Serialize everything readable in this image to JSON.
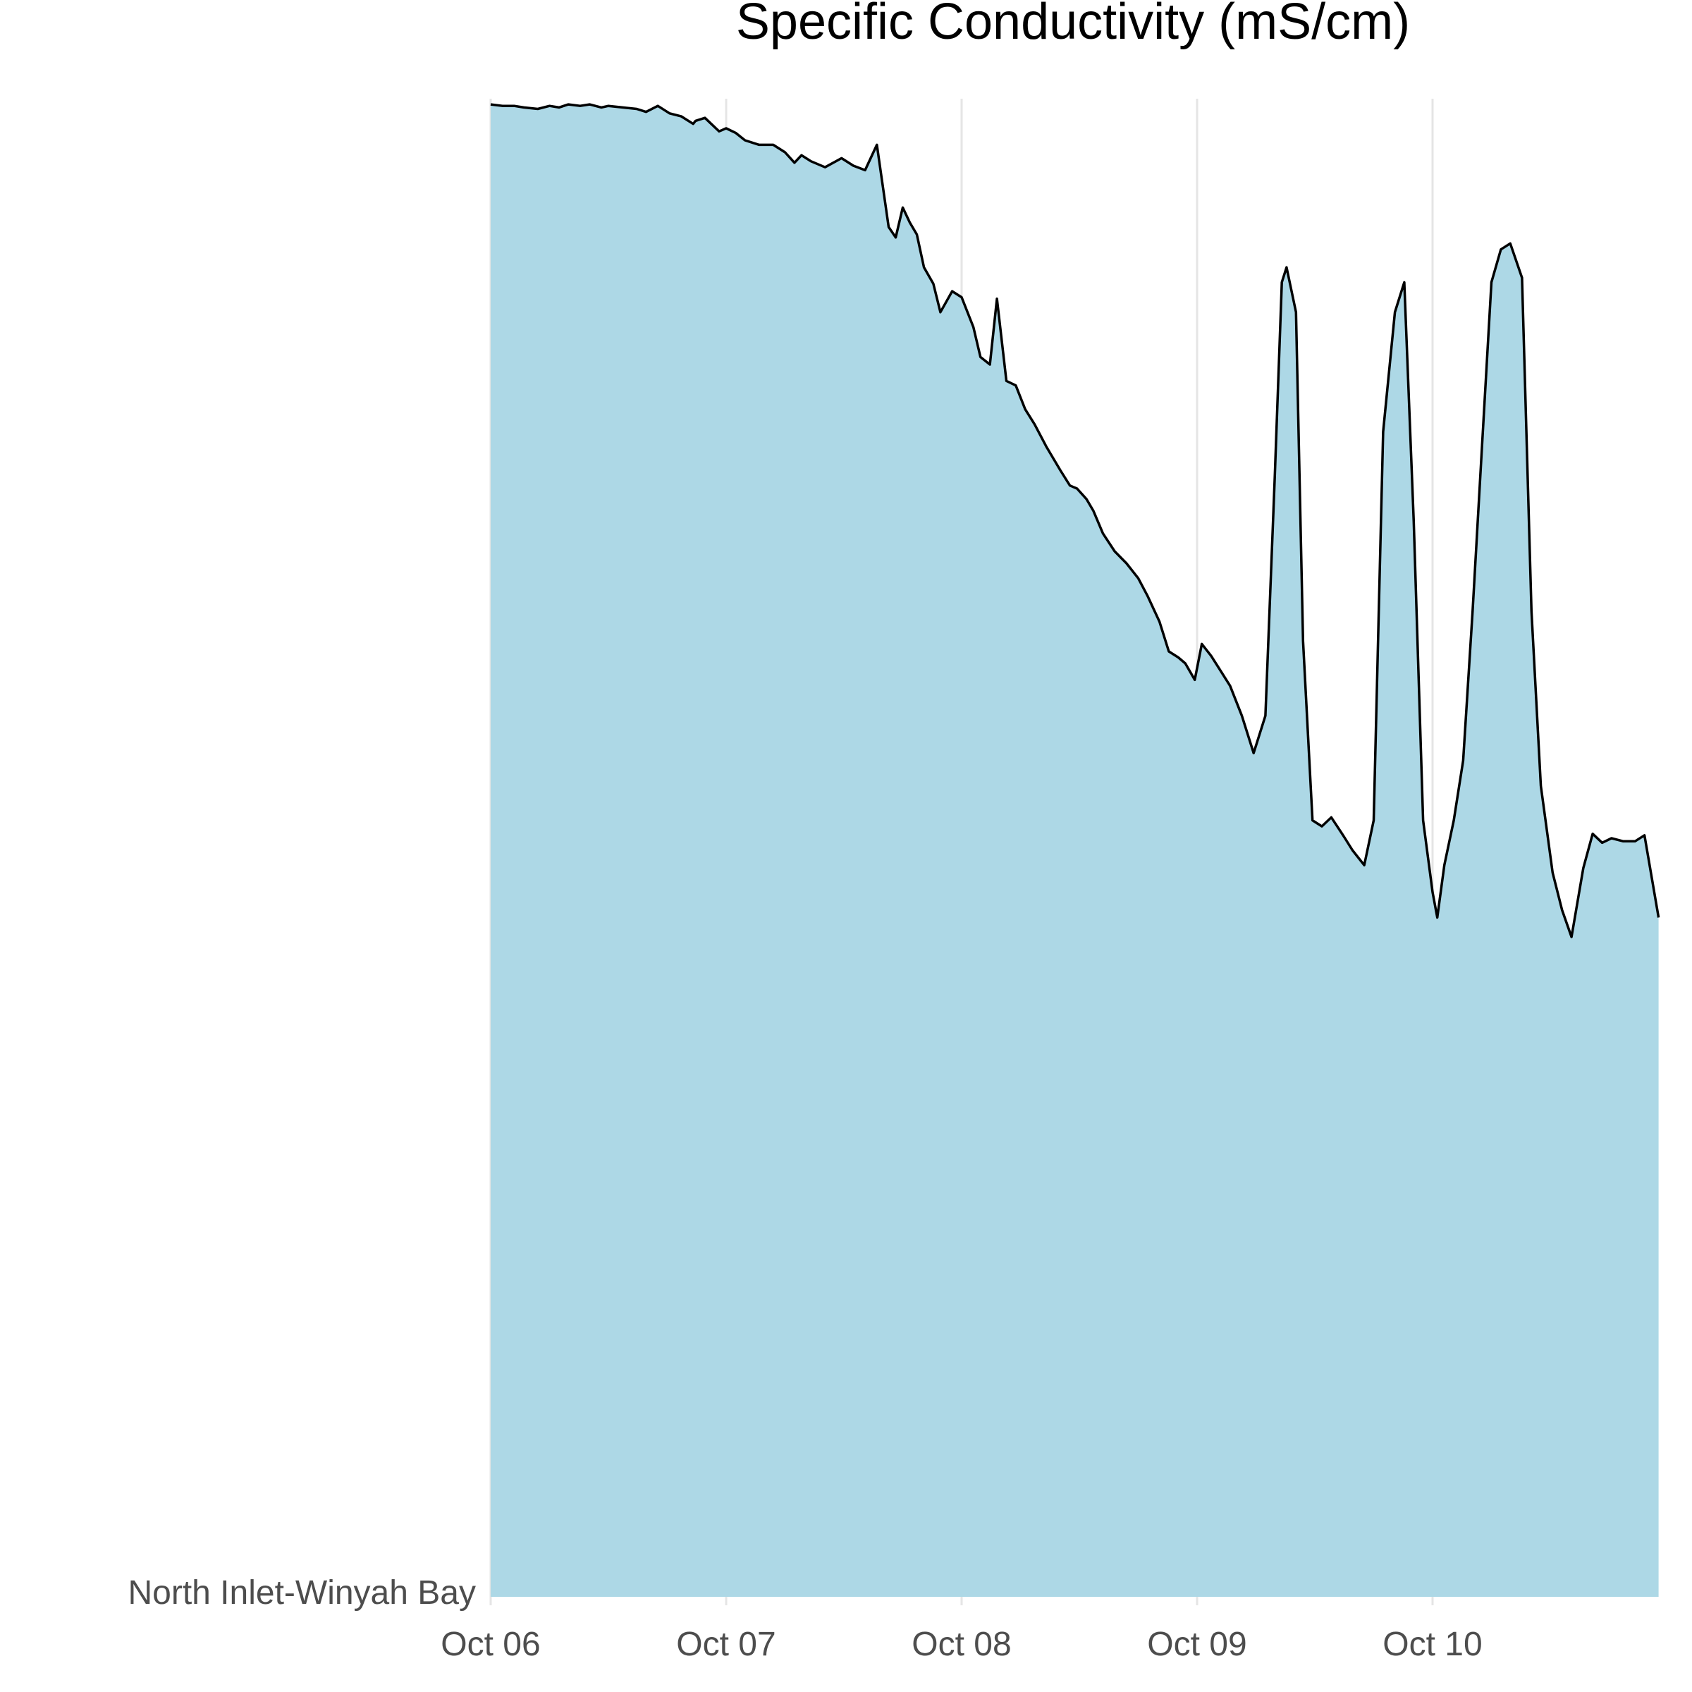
{
  "chart_data": {
    "type": "area",
    "title": "Specific Conductivity (mS/cm)",
    "xlabel": "",
    "ylabel": "",
    "y_category": "North Inlet-Winyah Bay",
    "x_ticks": [
      "Oct 06",
      "Oct 07",
      "Oct 08",
      "Oct 09",
      "Oct 10"
    ],
    "x_range_days": [
      0,
      4.96
    ],
    "y_range": [
      0,
      1
    ],
    "grid": {
      "vertical_major": true,
      "horizontal": false
    },
    "colors": {
      "fill": "#add8e6",
      "line": "#000000",
      "grid": "#e5e5e5",
      "tick_text": "#4d4d4d"
    },
    "series": [
      {
        "x": [
          0.0,
          0.05,
          0.1,
          0.14,
          0.2,
          0.25,
          0.29,
          0.33,
          0.38,
          0.42,
          0.47,
          0.5,
          0.56,
          0.62,
          0.66,
          0.71,
          0.76,
          0.81,
          0.86,
          0.87,
          0.91,
          0.97,
          1.0,
          1.04,
          1.08,
          1.14,
          1.2,
          1.25,
          1.29,
          1.32,
          1.36,
          1.42,
          1.49,
          1.54,
          1.59,
          1.64,
          1.69,
          1.72,
          1.75,
          1.78,
          1.81,
          1.84,
          1.88,
          1.91,
          1.96,
          2.0,
          2.05,
          2.08,
          2.12,
          2.15,
          2.19,
          2.23,
          2.27,
          2.31,
          2.36,
          2.42,
          2.46,
          2.49,
          2.53,
          2.56,
          2.6,
          2.65,
          2.7,
          2.75,
          2.79,
          2.84,
          2.88,
          2.92,
          2.95,
          2.99,
          3.02,
          3.06,
          3.1,
          3.14,
          3.19,
          3.24,
          3.29,
          3.33,
          3.36,
          3.38,
          3.42,
          3.45,
          3.49,
          3.53,
          3.57,
          3.62,
          3.66,
          3.71,
          3.75,
          3.79,
          3.84,
          3.88,
          3.92,
          3.96,
          4.0,
          4.02,
          4.05,
          4.09,
          4.13,
          4.17,
          4.21,
          4.25,
          4.29,
          4.33,
          4.38,
          4.42,
          4.46,
          4.51,
          4.55,
          4.59,
          4.64,
          4.68,
          4.72,
          4.76,
          4.81,
          4.86,
          4.9,
          4.96
        ],
        "y": [
          0.999,
          0.998,
          0.998,
          0.997,
          0.996,
          0.998,
          0.997,
          0.999,
          0.998,
          0.999,
          0.997,
          0.998,
          0.997,
          0.996,
          0.994,
          0.998,
          0.993,
          0.991,
          0.986,
          0.988,
          0.99,
          0.981,
          0.983,
          0.98,
          0.975,
          0.972,
          0.972,
          0.967,
          0.96,
          0.965,
          0.961,
          0.957,
          0.963,
          0.958,
          0.955,
          0.972,
          0.917,
          0.91,
          0.93,
          0.92,
          0.912,
          0.89,
          0.879,
          0.86,
          0.874,
          0.87,
          0.85,
          0.83,
          0.825,
          0.869,
          0.814,
          0.811,
          0.795,
          0.785,
          0.77,
          0.754,
          0.744,
          0.742,
          0.735,
          0.727,
          0.712,
          0.7,
          0.692,
          0.682,
          0.67,
          0.653,
          0.633,
          0.629,
          0.625,
          0.614,
          0.638,
          0.63,
          0.62,
          0.61,
          0.59,
          0.565,
          0.59,
          0.75,
          0.88,
          0.89,
          0.86,
          0.64,
          0.52,
          0.516,
          0.522,
          0.51,
          0.5,
          0.49,
          0.52,
          0.78,
          0.86,
          0.88,
          0.72,
          0.52,
          0.472,
          0.455,
          0.49,
          0.52,
          0.56,
          0.66,
          0.77,
          0.88,
          0.902,
          0.906,
          0.883,
          0.66,
          0.543,
          0.485,
          0.46,
          0.442,
          0.488,
          0.511,
          0.505,
          0.508,
          0.506,
          0.506,
          0.51,
          0.455
        ],
        "note_y": "normalized"
      }
    ]
  }
}
